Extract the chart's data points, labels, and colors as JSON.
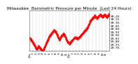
{
  "title": "Milwaukee  Barometric Pressure per Minute  (Last 24 Hours)",
  "title_fontsize": 4.2,
  "bg_color": "#ffffff",
  "line_color": "#ff0000",
  "grid_color": "#999999",
  "y_min": 29.65,
  "y_max": 30.28,
  "y_ticks": [
    29.7,
    29.75,
    29.8,
    29.85,
    29.9,
    29.95,
    30.0,
    30.05,
    30.1,
    30.15,
    30.2
  ],
  "y_tick_fontsize": 3.2,
  "x_tick_fontsize": 2.8,
  "x_labels": [
    "12a",
    "1",
    "2",
    "3",
    "4",
    "5",
    "6",
    "7",
    "8",
    "9",
    "10",
    "11",
    "12p",
    "1",
    "2",
    "3",
    "4",
    "5",
    "6",
    "7",
    "8",
    "9",
    "10",
    "11",
    "12a"
  ],
  "curve_keypoints_x": [
    0,
    30,
    60,
    80,
    100,
    120,
    140,
    160,
    180,
    200,
    220,
    240,
    260,
    280,
    300,
    320,
    340,
    360,
    380,
    400,
    420,
    440,
    460,
    480,
    500,
    520,
    540,
    560,
    580,
    600,
    620,
    640,
    660,
    680,
    700,
    720,
    740,
    760,
    780,
    800,
    820,
    840,
    860,
    880,
    900,
    920,
    940,
    960,
    980,
    1000,
    1020,
    1040,
    1060,
    1080,
    1100,
    1120,
    1140,
    1160,
    1180,
    1200,
    1220,
    1240,
    1260,
    1280,
    1300,
    1320,
    1340,
    1360,
    1380,
    1400,
    1420,
    1439
  ],
  "curve_keypoints_y": [
    29.85,
    29.82,
    29.78,
    29.75,
    29.72,
    29.68,
    29.68,
    29.72,
    29.7,
    29.68,
    29.66,
    29.65,
    29.68,
    29.72,
    29.76,
    29.8,
    29.84,
    29.88,
    29.9,
    29.92,
    29.95,
    29.97,
    29.96,
    29.94,
    29.9,
    29.86,
    29.82,
    29.86,
    29.88,
    29.9,
    29.92,
    29.88,
    29.84,
    29.8,
    29.78,
    29.76,
    29.78,
    29.8,
    29.82,
    29.84,
    29.86,
    29.85,
    29.84,
    29.85,
    29.86,
    29.88,
    29.9,
    29.92,
    29.94,
    29.96,
    29.98,
    30.0,
    30.04,
    30.08,
    30.12,
    30.14,
    30.16,
    30.18,
    30.2,
    30.18,
    30.16,
    30.18,
    30.2,
    30.22,
    30.2,
    30.18,
    30.2,
    30.22,
    30.2,
    30.18,
    30.2,
    30.22
  ]
}
